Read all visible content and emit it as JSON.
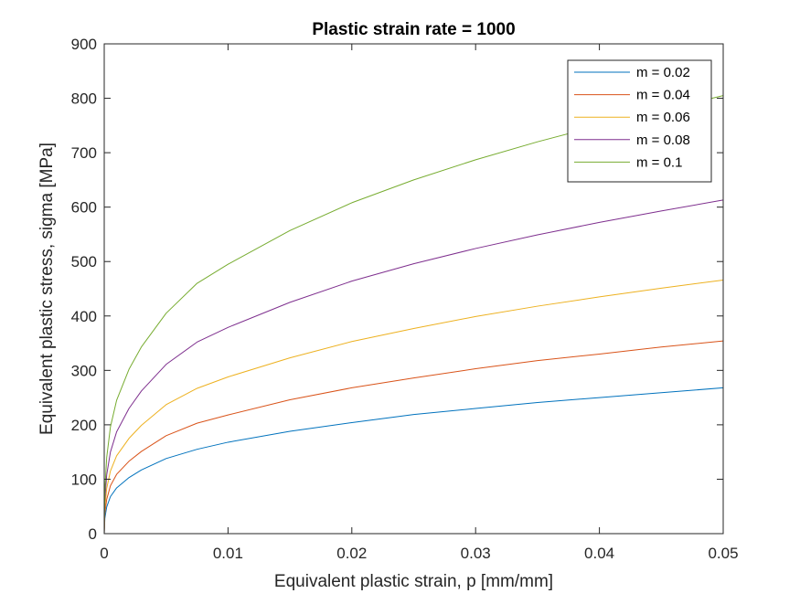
{
  "chart_data": {
    "type": "line",
    "title": "Plastic strain rate = 1000",
    "xlabel": "Equivalent plastic strain, p [mm/mm]",
    "ylabel": "Equivalent plastic stress, sigma [MPa]",
    "xlim": [
      0,
      0.05
    ],
    "ylim": [
      0,
      900
    ],
    "xticks": [
      0,
      0.01,
      0.02,
      0.03,
      0.04,
      0.05
    ],
    "xtick_labels": [
      "0",
      "0.01",
      "0.02",
      "0.03",
      "0.04",
      "0.05"
    ],
    "yticks": [
      0,
      100,
      200,
      300,
      400,
      500,
      600,
      700,
      800,
      900
    ],
    "ytick_labels": [
      "0",
      "100",
      "200",
      "300",
      "400",
      "500",
      "600",
      "700",
      "800",
      "900"
    ],
    "grid": false,
    "legend_position": "top-right",
    "series": [
      {
        "name": "m = 0.02",
        "color": "#0072BD",
        "x": [
          0,
          5e-05,
          0.0002,
          0.0005,
          0.001,
          0.002,
          0.003,
          0.005,
          0.0075,
          0.01,
          0.015,
          0.02,
          0.025,
          0.03,
          0.035,
          0.04,
          0.045,
          0.05
        ],
        "y": [
          0,
          28,
          49,
          68,
          84,
          103,
          117,
          138,
          155,
          168,
          188,
          204,
          219,
          230,
          241,
          250,
          259,
          268
        ]
      },
      {
        "name": "m = 0.04",
        "color": "#D95319",
        "x": [
          0,
          5e-05,
          0.0002,
          0.0005,
          0.001,
          0.002,
          0.003,
          0.005,
          0.0075,
          0.01,
          0.015,
          0.02,
          0.025,
          0.03,
          0.035,
          0.04,
          0.045,
          0.05
        ],
        "y": [
          0,
          37,
          63,
          88,
          109,
          133,
          151,
          180,
          203,
          218,
          246,
          268,
          286,
          303,
          318,
          330,
          343,
          354
        ]
      },
      {
        "name": "m = 0.06",
        "color": "#EDB120",
        "x": [
          0,
          5e-05,
          0.0002,
          0.0005,
          0.001,
          0.002,
          0.003,
          0.005,
          0.0075,
          0.01,
          0.015,
          0.02,
          0.025,
          0.03,
          0.035,
          0.04,
          0.045,
          0.05
        ],
        "y": [
          0,
          48,
          83,
          115,
          143,
          175,
          199,
          237,
          267,
          288,
          323,
          353,
          377,
          399,
          418,
          435,
          451,
          466
        ]
      },
      {
        "name": "m = 0.08",
        "color": "#7E2F8E",
        "x": [
          0,
          5e-05,
          0.0002,
          0.0005,
          0.001,
          0.002,
          0.003,
          0.005,
          0.0075,
          0.01,
          0.015,
          0.02,
          0.025,
          0.03,
          0.035,
          0.04,
          0.045,
          0.05
        ],
        "y": [
          0,
          62,
          108,
          150,
          187,
          230,
          262,
          311,
          352,
          379,
          425,
          464,
          496,
          524,
          549,
          572,
          593,
          613
        ]
      },
      {
        "name": "m = 0.1",
        "color": "#77AC30",
        "x": [
          0,
          5e-05,
          0.0002,
          0.0005,
          0.001,
          0.002,
          0.003,
          0.005,
          0.0075,
          0.01,
          0.015,
          0.02,
          0.025,
          0.03,
          0.035,
          0.04,
          0.045,
          0.05
        ],
        "y": [
          0,
          80,
          140,
          196,
          245,
          302,
          343,
          405,
          460,
          495,
          557,
          608,
          650,
          687,
          720,
          750,
          778,
          805
        ]
      }
    ]
  }
}
